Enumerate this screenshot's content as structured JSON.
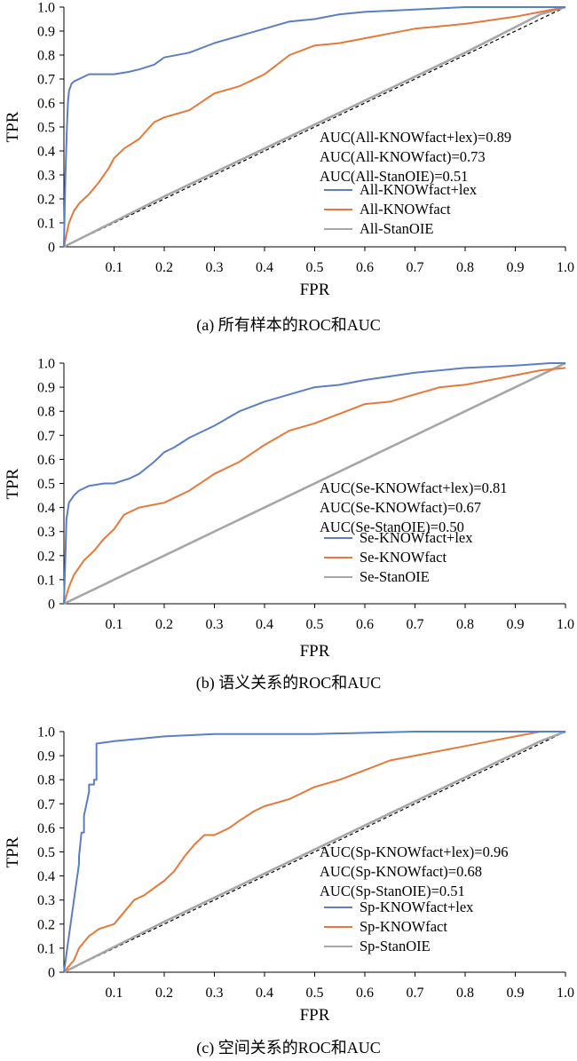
{
  "colors": {
    "blue": "#5b7fc2",
    "orange": "#e5793a",
    "gray": "#a6a6a6",
    "diag": "#000000"
  },
  "chart_data": [
    {
      "type": "line",
      "caption": "(a) 所有样本的ROC和AUC",
      "xlabel": "FPR",
      "ylabel": "TPR",
      "xlim": [
        0,
        1
      ],
      "ylim": [
        0,
        1
      ],
      "xticks": [
        "0.1",
        "0.2",
        "0.3",
        "0.4",
        "0.5",
        "0.6",
        "0.7",
        "0.8",
        "0.9",
        "1.0"
      ],
      "yticks": [
        "0",
        "0.1",
        "0.2",
        "0.3",
        "0.4",
        "0.5",
        "0.6",
        "0.7",
        "0.8",
        "0.9",
        "1.0"
      ],
      "reference_line": "diagonal dashed",
      "auc_labels": [
        "AUC(All-KNOWfact+lex)=0.89",
        "AUC(All-KNOWfact)=0.73",
        "AUC(All-StanOIE)=0.51"
      ],
      "series": [
        {
          "name": "All-KNOWfact+lex",
          "color": "#5b7fc2",
          "x": [
            0,
            0.003,
            0.006,
            0.008,
            0.01,
            0.015,
            0.02,
            0.03,
            0.05,
            0.08,
            0.1,
            0.13,
            0.15,
            0.18,
            0.2,
            0.25,
            0.3,
            0.35,
            0.4,
            0.45,
            0.5,
            0.55,
            0.6,
            0.7,
            0.8,
            0.9,
            1.0
          ],
          "y": [
            0,
            0.3,
            0.5,
            0.6,
            0.65,
            0.68,
            0.69,
            0.7,
            0.72,
            0.72,
            0.72,
            0.73,
            0.74,
            0.76,
            0.79,
            0.81,
            0.85,
            0.88,
            0.91,
            0.94,
            0.95,
            0.97,
            0.98,
            0.99,
            1.0,
            1.0,
            1.0
          ]
        },
        {
          "name": "All-KNOWfact",
          "color": "#e5793a",
          "x": [
            0,
            0.005,
            0.01,
            0.02,
            0.03,
            0.05,
            0.07,
            0.09,
            0.1,
            0.12,
            0.15,
            0.18,
            0.2,
            0.25,
            0.3,
            0.35,
            0.4,
            0.45,
            0.5,
            0.55,
            0.6,
            0.65,
            0.7,
            0.8,
            0.9,
            0.95,
            1.0
          ],
          "y": [
            0,
            0.05,
            0.1,
            0.15,
            0.18,
            0.22,
            0.27,
            0.33,
            0.37,
            0.41,
            0.45,
            0.52,
            0.54,
            0.57,
            0.64,
            0.67,
            0.72,
            0.8,
            0.84,
            0.85,
            0.87,
            0.89,
            0.91,
            0.93,
            0.96,
            0.98,
            1.0
          ]
        },
        {
          "name": "All-StanOIE",
          "color": "#a6a6a6",
          "x": [
            0,
            0.2,
            0.4,
            0.6,
            0.8,
            0.95,
            1.0
          ],
          "y": [
            0,
            0.21,
            0.41,
            0.61,
            0.81,
            0.97,
            1.0
          ]
        }
      ]
    },
    {
      "type": "line",
      "caption": "(b) 语义关系的ROC和AUC",
      "xlabel": "FPR",
      "ylabel": "TPR",
      "xlim": [
        0,
        1
      ],
      "ylim": [
        0,
        1
      ],
      "xticks": [
        "0.1",
        "0.2",
        "0.3",
        "0.4",
        "0.5",
        "0.6",
        "0.7",
        "0.8",
        "0.9",
        "1.0"
      ],
      "yticks": [
        "0",
        "0.1",
        "0.2",
        "0.3",
        "0.4",
        "0.5",
        "0.6",
        "0.7",
        "0.8",
        "0.9",
        "1.0"
      ],
      "reference_line": "diagonal dashed",
      "auc_labels": [
        "AUC(Se-KNOWfact+lex)=0.81",
        "AUC(Se-KNOWfact)=0.67",
        "AUC(Se-StanOIE)=0.50"
      ],
      "series": [
        {
          "name": "Se-KNOWfact+lex",
          "color": "#5b7fc2",
          "x": [
            0,
            0.003,
            0.005,
            0.01,
            0.02,
            0.03,
            0.05,
            0.08,
            0.1,
            0.13,
            0.15,
            0.18,
            0.2,
            0.22,
            0.25,
            0.3,
            0.35,
            0.4,
            0.45,
            0.5,
            0.55,
            0.6,
            0.7,
            0.8,
            0.9,
            0.97,
            1.0
          ],
          "y": [
            0,
            0.2,
            0.35,
            0.42,
            0.45,
            0.47,
            0.49,
            0.5,
            0.5,
            0.52,
            0.54,
            0.59,
            0.63,
            0.65,
            0.69,
            0.74,
            0.8,
            0.84,
            0.87,
            0.9,
            0.91,
            0.93,
            0.96,
            0.98,
            0.99,
            1.0,
            1.0
          ]
        },
        {
          "name": "Se-KNOWfact",
          "color": "#e5793a",
          "x": [
            0,
            0.01,
            0.02,
            0.04,
            0.06,
            0.08,
            0.1,
            0.12,
            0.15,
            0.2,
            0.25,
            0.3,
            0.35,
            0.4,
            0.45,
            0.5,
            0.55,
            0.6,
            0.65,
            0.7,
            0.75,
            0.8,
            0.85,
            0.9,
            0.95,
            1.0
          ],
          "y": [
            0,
            0.07,
            0.12,
            0.18,
            0.22,
            0.27,
            0.31,
            0.37,
            0.4,
            0.42,
            0.47,
            0.54,
            0.59,
            0.66,
            0.72,
            0.75,
            0.79,
            0.83,
            0.84,
            0.87,
            0.9,
            0.91,
            0.93,
            0.95,
            0.97,
            0.98
          ]
        },
        {
          "name": "Se-StanOIE",
          "color": "#a6a6a6",
          "x": [
            0,
            0.2,
            0.4,
            0.6,
            0.8,
            0.95,
            1.0
          ],
          "y": [
            0,
            0.2,
            0.4,
            0.6,
            0.8,
            0.95,
            1.0
          ]
        }
      ]
    },
    {
      "type": "line",
      "caption": "(c) 空间关系的ROC和AUC",
      "xlabel": "FPR",
      "ylabel": "TPR",
      "xlim": [
        0,
        1
      ],
      "ylim": [
        0,
        1
      ],
      "xticks": [
        "0.1",
        "0.2",
        "0.3",
        "0.4",
        "0.5",
        "0.6",
        "0.7",
        "0.8",
        "0.9",
        "1.0"
      ],
      "yticks": [
        "0",
        "0.1",
        "0.2",
        "0.3",
        "0.4",
        "0.5",
        "0.6",
        "0.7",
        "0.8",
        "0.9",
        "1.0"
      ],
      "reference_line": "diagonal dashed",
      "auc_labels": [
        "AUC(Sp-KNOWfact+lex)=0.96",
        "AUC(Sp-KNOWfact)=0.68",
        "AUC(Sp-StanOIE)=0.51"
      ],
      "series": [
        {
          "name": "Sp-KNOWfact+lex",
          "color": "#5b7fc2",
          "x": [
            0,
            0.02,
            0.03,
            0.03,
            0.035,
            0.04,
            0.04,
            0.05,
            0.05,
            0.06,
            0.06,
            0.065,
            0.065,
            0.1,
            0.15,
            0.2,
            0.3,
            0.5,
            0.7,
            1.0
          ],
          "y": [
            0,
            0.3,
            0.45,
            0.48,
            0.58,
            0.58,
            0.65,
            0.75,
            0.78,
            0.78,
            0.8,
            0.8,
            0.95,
            0.96,
            0.97,
            0.98,
            0.99,
            0.99,
            1.0,
            1.0
          ]
        },
        {
          "name": "Sp-KNOWfact",
          "color": "#e5793a",
          "x": [
            0,
            0.02,
            0.03,
            0.05,
            0.07,
            0.1,
            0.12,
            0.14,
            0.16,
            0.18,
            0.2,
            0.22,
            0.24,
            0.26,
            0.28,
            0.3,
            0.33,
            0.35,
            0.38,
            0.4,
            0.45,
            0.5,
            0.55,
            0.6,
            0.65,
            0.7,
            0.75,
            0.8,
            0.85,
            0.9,
            0.95,
            1.0
          ],
          "y": [
            0,
            0.05,
            0.1,
            0.15,
            0.18,
            0.2,
            0.25,
            0.3,
            0.32,
            0.35,
            0.38,
            0.42,
            0.48,
            0.53,
            0.57,
            0.57,
            0.6,
            0.63,
            0.67,
            0.69,
            0.72,
            0.77,
            0.8,
            0.84,
            0.88,
            0.9,
            0.92,
            0.94,
            0.96,
            0.98,
            1.0,
            1.0
          ]
        },
        {
          "name": "Sp-StanOIE",
          "color": "#a6a6a6",
          "x": [
            0,
            0.2,
            0.4,
            0.6,
            0.8,
            0.95,
            1.0
          ],
          "y": [
            0,
            0.21,
            0.41,
            0.61,
            0.81,
            0.96,
            1.0
          ]
        }
      ]
    }
  ]
}
